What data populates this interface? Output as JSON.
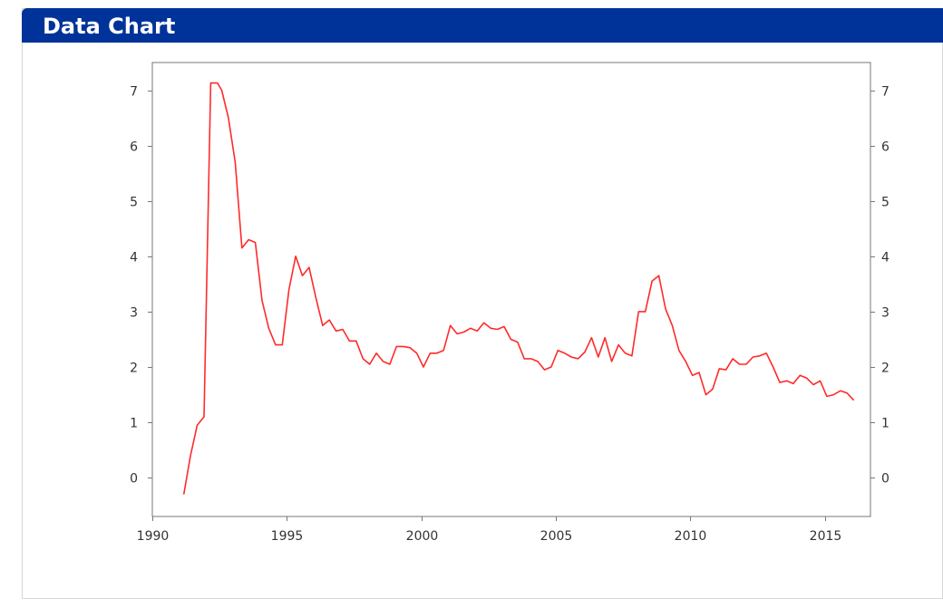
{
  "panel": {
    "title": "Data Chart"
  },
  "chart_data": {
    "type": "line",
    "title": "",
    "xlabel": "",
    "ylabel": "",
    "xlim": [
      1990,
      2016.7
    ],
    "ylim": [
      -0.7,
      7.5
    ],
    "x_ticks": [
      1990,
      1995,
      2000,
      2005,
      2010,
      2015
    ],
    "y_ticks": [
      0,
      1,
      2,
      3,
      4,
      5,
      6,
      7
    ],
    "grid": true,
    "legend": "none",
    "colors": {
      "line": "#ff2a2a",
      "grid": "#cccccc",
      "axis": "#777777"
    },
    "series": [
      {
        "x": [
          1991.17,
          1991.42,
          1991.67,
          1991.92,
          1992.17,
          1992.42,
          1992.58,
          1992.83,
          1993.08,
          1993.33,
          1993.58,
          1993.83,
          1994.08,
          1994.33,
          1994.58,
          1994.83,
          1995.08,
          1995.33,
          1995.58,
          1995.83,
          1996.08,
          1996.33,
          1996.58,
          1996.83,
          1997.08,
          1997.33,
          1997.58,
          1997.83,
          1998.08,
          1998.33,
          1998.58,
          1998.83,
          1999.08,
          1999.33,
          1999.58,
          1999.83,
          2000.08,
          2000.33,
          2000.58,
          2000.83,
          2001.08,
          2001.33,
          2001.58,
          2001.83,
          2002.08,
          2002.33,
          2002.58,
          2002.83,
          2003.08,
          2003.33,
          2003.58,
          2003.83,
          2004.08,
          2004.33,
          2004.58,
          2004.83,
          2005.08,
          2005.33,
          2005.58,
          2005.83,
          2006.08,
          2006.33,
          2006.58,
          2006.83,
          2007.08,
          2007.33,
          2007.58,
          2007.83,
          2008.08,
          2008.33,
          2008.58,
          2008.83,
          2009.08,
          2009.33,
          2009.58,
          2009.83,
          2010.08,
          2010.33,
          2010.58,
          2010.83,
          2011.08,
          2011.33,
          2011.58,
          2011.83,
          2012.08,
          2012.33,
          2012.58,
          2012.83,
          2013.08,
          2013.33,
          2013.58,
          2013.83,
          2014.08,
          2014.33,
          2014.58,
          2014.83,
          2015.08,
          2015.33,
          2015.58,
          2015.83,
          2016.08
        ],
        "y": [
          -0.3,
          0.4,
          0.95,
          1.1,
          7.13,
          7.13,
          7.0,
          6.5,
          5.7,
          4.15,
          4.3,
          4.25,
          3.2,
          2.7,
          2.4,
          2.4,
          3.4,
          4.0,
          3.65,
          3.8,
          3.25,
          2.75,
          2.85,
          2.65,
          2.68,
          2.47,
          2.47,
          2.15,
          2.05,
          2.25,
          2.1,
          2.05,
          2.37,
          2.37,
          2.35,
          2.25,
          2.0,
          2.25,
          2.25,
          2.3,
          2.75,
          2.6,
          2.63,
          2.7,
          2.65,
          2.8,
          2.7,
          2.68,
          2.73,
          2.5,
          2.45,
          2.15,
          2.15,
          2.1,
          1.95,
          2.0,
          2.3,
          2.25,
          2.18,
          2.15,
          2.27,
          2.53,
          2.18,
          2.53,
          2.1,
          2.4,
          2.25,
          2.2,
          3.0,
          3.0,
          3.55,
          3.65,
          3.05,
          2.75,
          2.3,
          2.1,
          1.85,
          1.9,
          1.5,
          1.6,
          1.97,
          1.95,
          2.15,
          2.05,
          2.05,
          2.18,
          2.2,
          2.25,
          2.0,
          1.72,
          1.75,
          1.7,
          1.85,
          1.8,
          1.68,
          1.75,
          1.47,
          1.5,
          1.57,
          1.53,
          1.4
        ]
      }
    ]
  }
}
